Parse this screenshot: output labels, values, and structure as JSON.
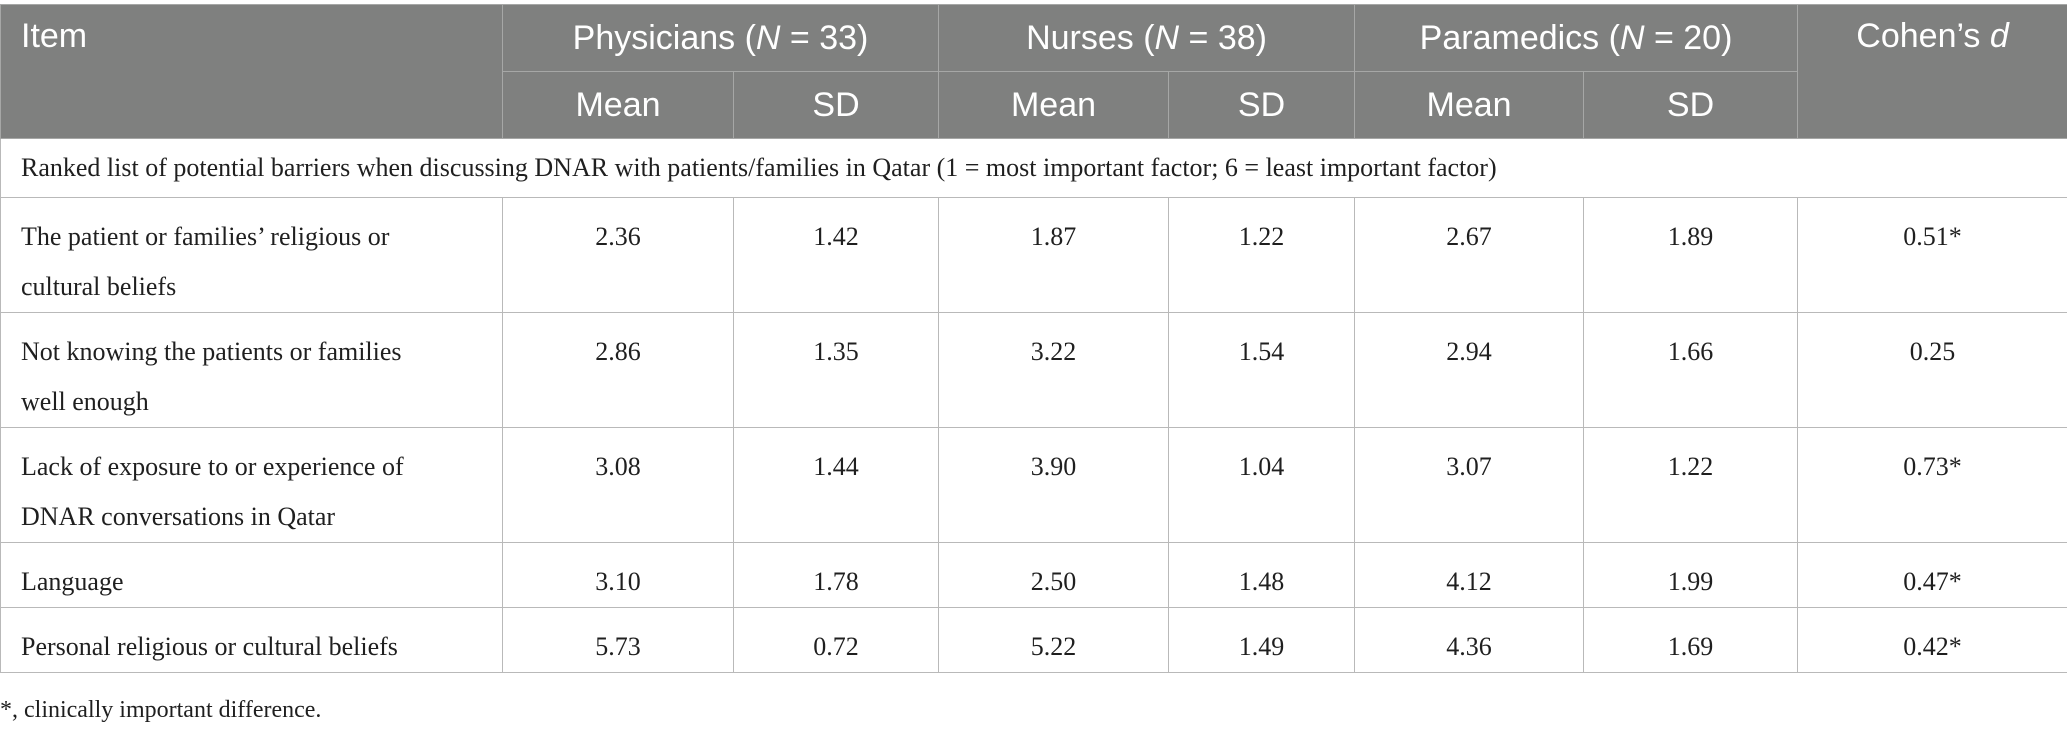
{
  "header": {
    "item_label": "Item",
    "groups": [
      {
        "prefix": "Physicians (",
        "n_symbol": "N",
        "suffix": " = 33)"
      },
      {
        "prefix": "Nurses (",
        "n_symbol": "N",
        "suffix": " = 38)"
      },
      {
        "prefix": "Paramedics (",
        "n_symbol": "N",
        "suffix": " = 20)"
      }
    ],
    "cohen_prefix": "Cohen’s ",
    "cohen_symbol": "d",
    "sub": [
      "Mean",
      "SD",
      "Mean",
      "SD",
      "Mean",
      "SD"
    ]
  },
  "section_title": "Ranked list of potential barriers when discussing DNAR with patients/families in Qatar (1 = most important factor; 6 = least important factor)",
  "rows": [
    {
      "item_line1": "The patient or families’ religious or",
      "item_line2": "cultural beliefs",
      "values": [
        "2.36",
        "1.42",
        "1.87",
        "1.22",
        "2.67",
        "1.89",
        "0.51*"
      ]
    },
    {
      "item_line1": "Not knowing the patients or families",
      "item_line2": "well enough",
      "values": [
        "2.86",
        "1.35",
        "3.22",
        "1.54",
        "2.94",
        "1.66",
        "0.25"
      ]
    },
    {
      "item_line1": "Lack of exposure to or experience of",
      "item_line2": "DNAR conversations in Qatar",
      "values": [
        "3.08",
        "1.44",
        "3.90",
        "1.04",
        "3.07",
        "1.22",
        "0.73*"
      ]
    },
    {
      "item_line1": "Language",
      "item_line2": "",
      "values": [
        "3.10",
        "1.78",
        "2.50",
        "1.48",
        "4.12",
        "1.99",
        "0.47*"
      ]
    },
    {
      "item_line1": "Personal religious or cultural beliefs",
      "item_line2": "",
      "values": [
        "5.73",
        "0.72",
        "5.22",
        "1.49",
        "4.36",
        "1.69",
        "0.42*"
      ]
    }
  ],
  "footnote": "*, clinically important difference."
}
